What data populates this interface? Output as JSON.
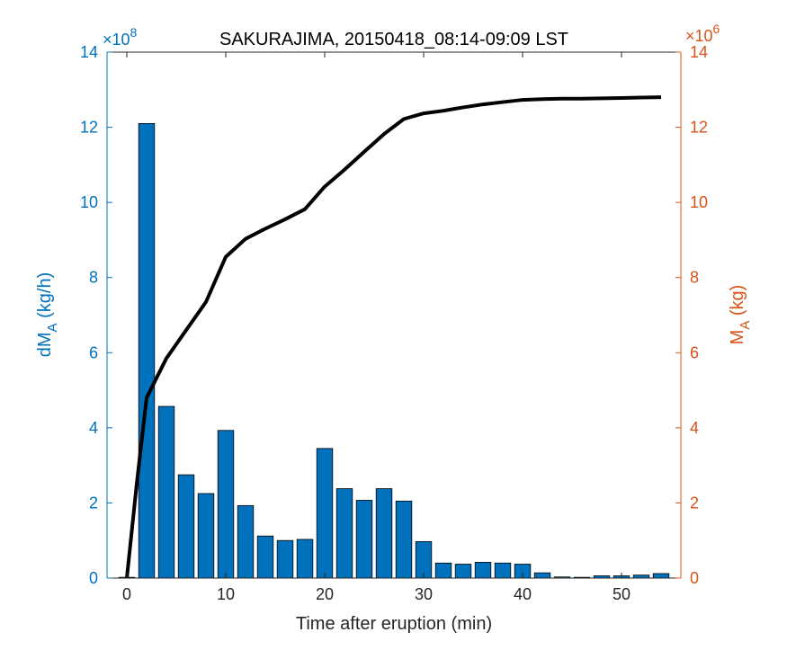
{
  "chart_data": {
    "type": "bar",
    "title": "SAKURAJIMA, 20150418_08:14-09:09 LST",
    "xlabel": "Time after eruption (min)",
    "xlim": [
      -2,
      56
    ],
    "xticks": [
      0,
      10,
      20,
      30,
      40,
      50
    ],
    "grid": false,
    "legend": "none",
    "left_axis": {
      "label_main": "dM",
      "label_sub": "A",
      "label_unit": " (kg/h)",
      "exponent_base": "×10",
      "exponent_power": "8",
      "ylim": [
        0,
        14
      ],
      "ticks": [
        0,
        2,
        4,
        6,
        8,
        10,
        12,
        14
      ],
      "color": "#0072BD"
    },
    "right_axis": {
      "label_main": "M",
      "label_sub": "A",
      "label_unit": " (kg)",
      "exponent_base": "×10",
      "exponent_power": "6",
      "ylim": [
        0,
        14
      ],
      "ticks": [
        0,
        2,
        4,
        6,
        8,
        10,
        12,
        14
      ],
      "color": "#D95319"
    },
    "series": [
      {
        "kind": "bar",
        "axis": "left",
        "color": "#0072BD",
        "x": [
          0,
          2,
          4,
          6,
          8,
          10,
          12,
          14,
          16,
          18,
          20,
          22,
          24,
          26,
          28,
          30,
          32,
          34,
          36,
          38,
          40,
          42,
          44,
          46,
          48,
          50,
          52,
          54
        ],
        "values": [
          0.02,
          12.1,
          4.57,
          2.75,
          2.25,
          3.93,
          1.93,
          1.12,
          1.0,
          1.03,
          3.45,
          2.38,
          2.07,
          2.38,
          2.05,
          0.97,
          0.4,
          0.37,
          0.42,
          0.4,
          0.37,
          0.14,
          0.03,
          0.02,
          0.06,
          0.06,
          0.08,
          0.12
        ]
      },
      {
        "kind": "line",
        "axis": "right",
        "color": "#000000",
        "x": [
          0,
          1,
          2,
          4,
          6,
          8,
          10,
          12,
          14,
          16,
          18,
          20,
          22,
          24,
          26,
          28,
          30,
          32,
          34,
          36,
          38,
          40,
          42,
          44,
          46,
          48,
          50,
          52,
          54
        ],
        "values": [
          0,
          2.5,
          4.8,
          5.85,
          6.6,
          7.35,
          8.55,
          9.03,
          9.3,
          9.55,
          9.82,
          10.42,
          10.87,
          11.35,
          11.82,
          12.22,
          12.37,
          12.44,
          12.53,
          12.61,
          12.67,
          12.73,
          12.75,
          12.76,
          12.76,
          12.77,
          12.78,
          12.79,
          12.8
        ]
      }
    ]
  }
}
